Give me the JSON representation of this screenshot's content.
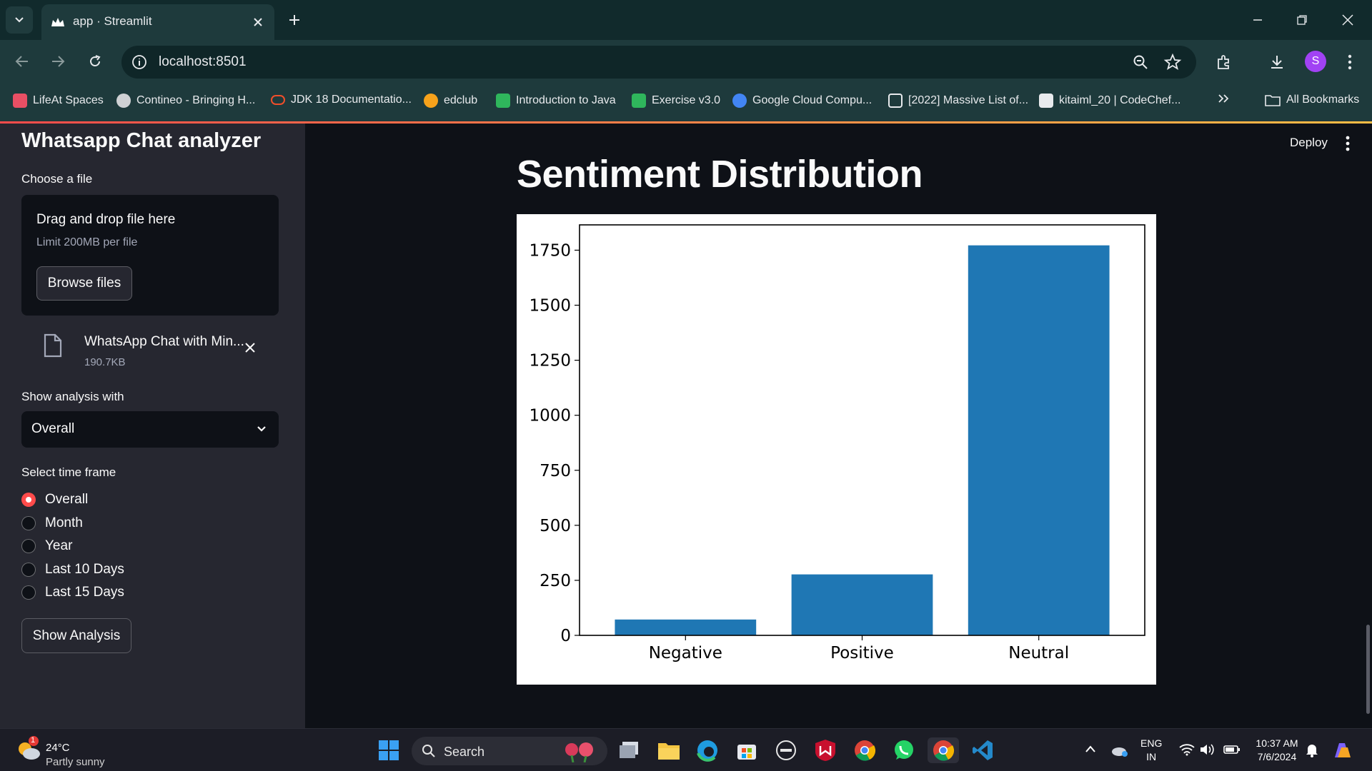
{
  "browser": {
    "tab_title": "app · Streamlit",
    "url": "localhost:8501",
    "profile_initial": "S",
    "bookmarks": [
      {
        "label": "LifeAt Spaces",
        "color": "#e94f64"
      },
      {
        "label": "Contineo - Bringing H...",
        "color": "#cfd1d4"
      },
      {
        "label": "JDK 18 Documentatio...",
        "color": "#f04e2a"
      },
      {
        "label": "edclub",
        "color": "#f7a21b"
      },
      {
        "label": "Introduction to Java",
        "color": "#2fb65c"
      },
      {
        "label": "Exercise v3.0",
        "color": "#2fb65c"
      },
      {
        "label": "Google Cloud Compu...",
        "color": "#4285f4"
      },
      {
        "label": "[2022] Massive List of...",
        "color": "#e8eaed"
      },
      {
        "label": "kitaiml_20 | CodeChef...",
        "color": "#e8eaed"
      }
    ],
    "all_bookmarks": "All Bookmarks"
  },
  "sidebar": {
    "title": "Whatsapp Chat analyzer",
    "choose_file_label": "Choose a file",
    "dropzone_text": "Drag and drop file here",
    "dropzone_limit": "Limit 200MB per file",
    "browse_button": "Browse files",
    "uploaded_file_name": "WhatsApp Chat with Min...",
    "uploaded_file_size": "190.7KB",
    "analysis_label": "Show analysis with",
    "analysis_value": "Overall",
    "timeframe_label": "Select time frame",
    "timeframe_options": [
      "Overall",
      "Month",
      "Year",
      "Last 10 Days",
      "Last 15 Days"
    ],
    "timeframe_selected": "Overall",
    "show_button": "Show Analysis"
  },
  "header": {
    "deploy": "Deploy"
  },
  "main": {
    "heading": "Sentiment Distribution"
  },
  "chart_data": {
    "type": "bar",
    "categories": [
      "Negative",
      "Positive",
      "Neutral"
    ],
    "values": [
      72,
      277,
      1772
    ],
    "ylim": [
      0,
      1865
    ],
    "yticks": [
      0,
      250,
      500,
      750,
      1000,
      1250,
      1500,
      1750
    ],
    "bar_color": "#1f77b4",
    "grid": false
  },
  "taskbar": {
    "weather_temp": "24°C",
    "weather_cond": "Partly sunny",
    "weather_badge": "1",
    "search_placeholder": "Search",
    "lang_top": "ENG",
    "lang_bottom": "IN",
    "time": "10:37 AM",
    "date": "7/6/2024"
  }
}
